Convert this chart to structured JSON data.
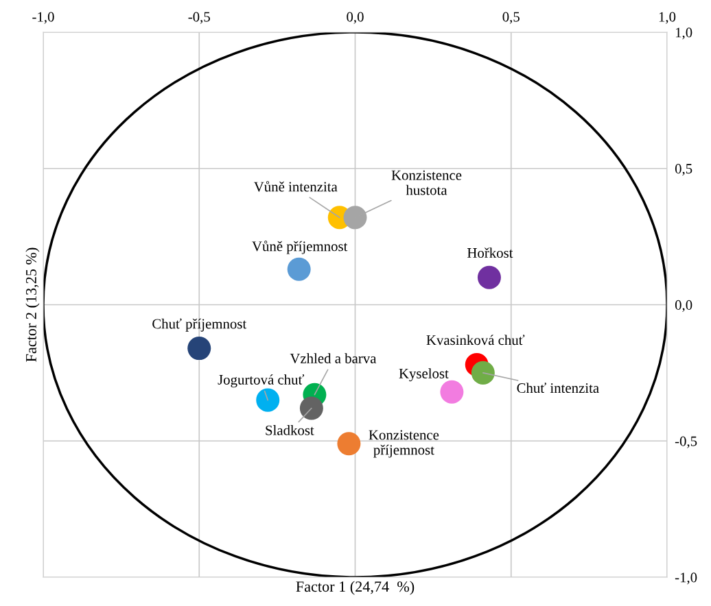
{
  "chart_data": {
    "type": "scatter",
    "xlabel": "Factor 1 (24,74  %)",
    "ylabel": "Factor 2 (13,25 %)",
    "xlim": [
      -1,
      1
    ],
    "ylim": [
      -1,
      1
    ],
    "xticks": [
      {
        "value": -1,
        "label": "-1,0"
      },
      {
        "value": -0.5,
        "label": "-0,5"
      },
      {
        "value": 0,
        "label": "0,0"
      },
      {
        "value": 0.5,
        "label": "0,5"
      },
      {
        "value": 1,
        "label": "1,0"
      }
    ],
    "yticks": [
      {
        "value": -1,
        "label": "-1,0"
      },
      {
        "value": -0.5,
        "label": "-0,5"
      },
      {
        "value": 0,
        "label": "0,0"
      },
      {
        "value": 0.5,
        "label": "0,5"
      },
      {
        "value": 1,
        "label": "1,0"
      }
    ],
    "grid": true,
    "marker": "circle",
    "legend": false,
    "series": [
      {
        "name": "Vůně intenzita",
        "color": "#ffc000",
        "x": [
          -0.05
        ],
        "values": [
          0.32
        ]
      },
      {
        "name": "Konzistence\nhustota",
        "color": "#a5a5a5",
        "x": [
          0.0
        ],
        "values": [
          0.32
        ]
      },
      {
        "name": "Vůně příjemnost",
        "color": "#5b9bd5",
        "x": [
          -0.18
        ],
        "values": [
          0.13
        ]
      },
      {
        "name": "Hořkost",
        "color": "#7030a0",
        "x": [
          0.43
        ],
        "values": [
          0.1
        ]
      },
      {
        "name": "Chuť příjemnost",
        "color": "#264478",
        "x": [
          -0.5
        ],
        "values": [
          -0.16
        ]
      },
      {
        "name": "Kvasinková chuť",
        "color": "#ff0000",
        "x": [
          0.39
        ],
        "values": [
          -0.22
        ]
      },
      {
        "name": "Chuť intenzita",
        "color": "#70ad47",
        "x": [
          0.41
        ],
        "values": [
          -0.25
        ]
      },
      {
        "name": "Kyselost",
        "color": "#f27ce0",
        "x": [
          0.31
        ],
        "values": [
          -0.32
        ]
      },
      {
        "name": "Vzhled a barva",
        "color": "#00b050",
        "x": [
          -0.13
        ],
        "values": [
          -0.33
        ]
      },
      {
        "name": "Jogurtová chuť",
        "color": "#00b0f0",
        "x": [
          -0.28
        ],
        "values": [
          -0.35
        ]
      },
      {
        "name": "Sladkost",
        "color": "#636363",
        "x": [
          -0.14
        ],
        "values": [
          -0.38
        ]
      },
      {
        "name": "Konzistence\npříjemnost",
        "color": "#ed7d31",
        "x": [
          -0.02
        ],
        "values": [
          -0.51
        ]
      }
    ]
  }
}
